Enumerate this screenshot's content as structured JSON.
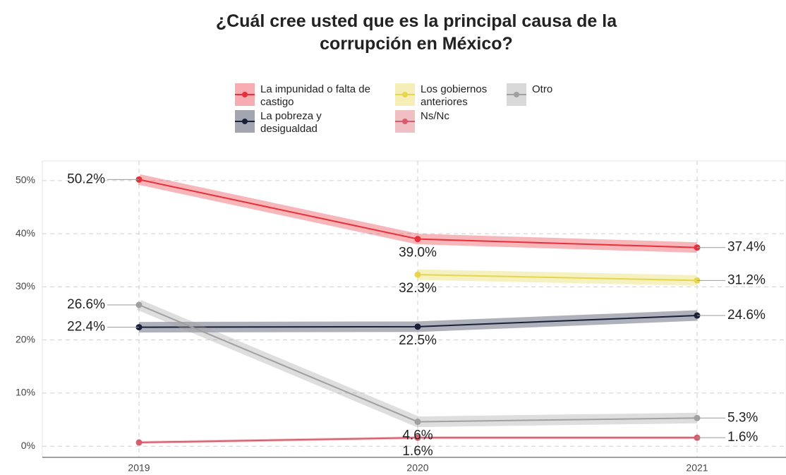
{
  "chart_data": {
    "type": "line",
    "title": "¿Cuál cree usted que es la principal causa de la corrupción en México?",
    "categories": [
      "2019",
      "2020",
      "2021"
    ],
    "series": [
      {
        "name": "La impunidad o falta de castigo",
        "color": "#e8303a",
        "values": [
          50.2,
          39.0,
          37.4
        ],
        "value_labels": [
          "50.2%",
          "39.0%",
          "37.4%"
        ]
      },
      {
        "name": "La pobreza y desigualdad",
        "color": "#18203a",
        "values": [
          22.4,
          22.5,
          24.6
        ],
        "value_labels": [
          "22.4%",
          "22.5%",
          "24.6%"
        ]
      },
      {
        "name": "Los gobiernos anteriores",
        "color": "#e6d64c",
        "values": [
          null,
          32.3,
          31.2
        ],
        "value_labels": [
          null,
          "32.3%",
          "31.2%"
        ]
      },
      {
        "name": "Ns/Nc",
        "color": "#d65e6c",
        "values": [
          0.7,
          1.6,
          1.6
        ],
        "value_labels": [
          null,
          "1.6%",
          "1.6%"
        ]
      },
      {
        "name": "Otro",
        "color": "#a0a0a0",
        "values": [
          26.6,
          4.6,
          5.3
        ],
        "value_labels": [
          "26.6%",
          "4.6%",
          "5.3%"
        ]
      }
    ],
    "ylim": [
      -2.1,
      53.7
    ],
    "yticks": [
      {
        "value": 0,
        "label": "0%"
      },
      {
        "value": 10,
        "label": "10%"
      },
      {
        "value": 20,
        "label": "20%"
      },
      {
        "value": 30,
        "label": "30%"
      },
      {
        "value": 40,
        "label": "40%"
      },
      {
        "value": 50,
        "label": "50%"
      }
    ],
    "grid": true
  }
}
